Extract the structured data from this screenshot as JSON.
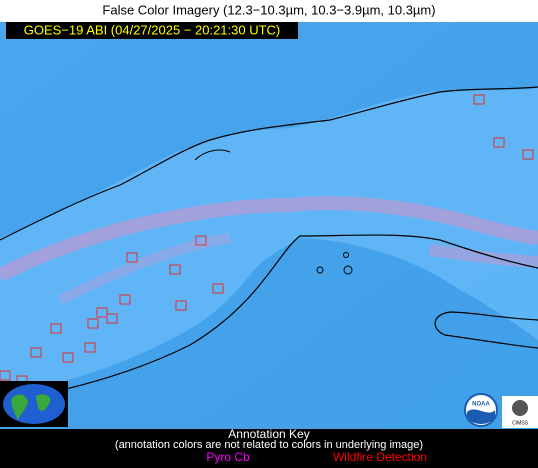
{
  "title": "False Color Imagery (12.3−10.3µm, 10.3−3.9µm, 10.3µm)",
  "subtitle": "GOES−19 ABI (04/27/2025 − 20:21:30 UTC)",
  "key": {
    "heading": "Annotation Key",
    "note": "(annotation colors are not related to colors in underlying image)",
    "pyro_cb": "Pyro Cb",
    "wildfire": "Wildfire Detection"
  },
  "logos": {
    "noaa": "NOAA",
    "cimss": "CIMSS"
  }
}
